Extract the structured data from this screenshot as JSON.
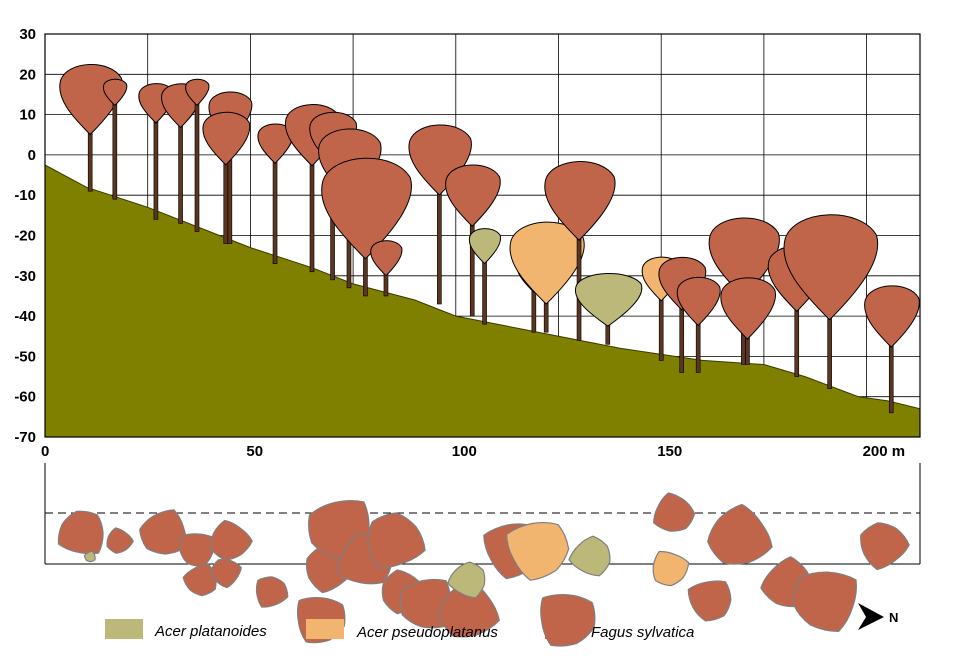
{
  "chart_data": {
    "type": "profile",
    "title": "",
    "xlabel": "",
    "ylabel": "",
    "x_unit": "m",
    "xlim": [
      0,
      213
    ],
    "ylim": [
      -70,
      30
    ],
    "x_ticks": [
      0,
      50,
      100,
      150,
      200
    ],
    "y_ticks": [
      30,
      20,
      10,
      0,
      -10,
      -20,
      -30,
      -40,
      -50,
      -60,
      -70
    ],
    "x_tick_labels": [
      "0",
      "50",
      "100",
      "150",
      "200 m"
    ],
    "grid": true,
    "species": [
      {
        "key": "ap",
        "name": "Acer platanoides",
        "color": "#bcb87a"
      },
      {
        "key": "pp",
        "name": "Acer pseudoplatanus",
        "color": "#f2b570"
      },
      {
        "key": "fs",
        "name": "Fagus sylvatica",
        "color": "#c0654a"
      }
    ],
    "ground_color": "#7f7f00",
    "ground_profile": [
      [
        0,
        -2.5
      ],
      [
        10,
        -8
      ],
      [
        25,
        -13
      ],
      [
        40,
        -19
      ],
      [
        50,
        -23
      ],
      [
        65,
        -28
      ],
      [
        75,
        -32
      ],
      [
        90,
        -36
      ],
      [
        100,
        -40
      ],
      [
        120,
        -44
      ],
      [
        130,
        -46
      ],
      [
        140,
        -48
      ],
      [
        160,
        -51
      ],
      [
        175,
        -52
      ],
      [
        185,
        -55
      ],
      [
        198,
        -60
      ],
      [
        205,
        -61
      ],
      [
        213,
        -63
      ]
    ],
    "trees_profile": [
      {
        "sp": "fs",
        "x": 11,
        "base": -9,
        "top": 23,
        "w": 16
      },
      {
        "sp": "fs",
        "x": 17,
        "base": -11,
        "top": 19,
        "w": 6
      },
      {
        "sp": "fs",
        "x": 27,
        "base": -16,
        "top": 18,
        "w": 9
      },
      {
        "sp": "fs",
        "x": 33,
        "base": -17,
        "top": 18,
        "w": 10
      },
      {
        "sp": "fs",
        "x": 37,
        "base": -19,
        "top": 19,
        "w": 6
      },
      {
        "sp": "fs",
        "x": 45,
        "base": -22,
        "top": 16,
        "w": 11
      },
      {
        "sp": "fs",
        "x": 44,
        "base": -22,
        "top": 11,
        "w": 12
      },
      {
        "sp": "fs",
        "x": 56,
        "base": -27,
        "top": 8,
        "w": 9
      },
      {
        "sp": "fs",
        "x": 65,
        "base": -29,
        "top": 13,
        "w": 14
      },
      {
        "sp": "fs",
        "x": 70,
        "base": -31,
        "top": 11,
        "w": 12
      },
      {
        "sp": "fs",
        "x": 74,
        "base": -33,
        "top": 7,
        "w": 16
      },
      {
        "sp": "fs",
        "x": 78,
        "base": -35,
        "top": 0,
        "w": 23
      },
      {
        "sp": "fs",
        "x": 83,
        "base": -35,
        "top": -21,
        "w": 8
      },
      {
        "sp": "fs",
        "x": 96,
        "base": -37,
        "top": 8,
        "w": 16
      },
      {
        "sp": "fs",
        "x": 104,
        "base": -40,
        "top": -2,
        "w": 14
      },
      {
        "sp": "ap",
        "x": 107,
        "base": -42,
        "top": -18,
        "w": 8
      },
      {
        "sp": "fs",
        "x": 119,
        "base": -44,
        "top": -24,
        "w": 9
      },
      {
        "sp": "pp",
        "x": 122,
        "base": -44,
        "top": -16,
        "w": 19
      },
      {
        "sp": "fs",
        "x": 130,
        "base": -46,
        "top": -1,
        "w": 18
      },
      {
        "sp": "ap",
        "x": 137,
        "base": -47,
        "top": -29,
        "w": 17
      },
      {
        "sp": "pp",
        "x": 150,
        "base": -51,
        "top": -25,
        "w": 10
      },
      {
        "sp": "fs",
        "x": 155,
        "base": -54,
        "top": -25,
        "w": 12
      },
      {
        "sp": "fs",
        "x": 159,
        "base": -54,
        "top": -30,
        "w": 11
      },
      {
        "sp": "fs",
        "x": 170,
        "base": -52,
        "top": -15,
        "w": 18
      },
      {
        "sp": "fs",
        "x": 171,
        "base": -52,
        "top": -30,
        "w": 14
      },
      {
        "sp": "fs",
        "x": 183,
        "base": -55,
        "top": -22,
        "w": 15
      },
      {
        "sp": "fs",
        "x": 191,
        "base": -58,
        "top": -14,
        "w": 24
      },
      {
        "sp": "fs",
        "x": 206,
        "base": -64,
        "top": -32,
        "w": 14
      }
    ],
    "crowns_plan": [
      {
        "sp": "fs",
        "x": 9,
        "y": 18,
        "r": 6.5
      },
      {
        "sp": "ap",
        "x": 11,
        "y": 24,
        "r": 1.5
      },
      {
        "sp": "fs",
        "x": 18,
        "y": 20,
        "r": 3.5
      },
      {
        "sp": "fs",
        "x": 29,
        "y": 18,
        "r": 6.5
      },
      {
        "sp": "fs",
        "x": 37,
        "y": 22,
        "r": 5
      },
      {
        "sp": "fs",
        "x": 38,
        "y": 30,
        "r": 4.5
      },
      {
        "sp": "fs",
        "x": 44,
        "y": 28,
        "r": 4
      },
      {
        "sp": "fs",
        "x": 45,
        "y": 20,
        "r": 5.5
      },
      {
        "sp": "fs",
        "x": 55,
        "y": 33,
        "r": 4.5
      },
      {
        "sp": "fs",
        "x": 67,
        "y": 40,
        "r": 7
      },
      {
        "sp": "fs",
        "x": 69,
        "y": 27,
        "r": 6.5
      },
      {
        "sp": "fs",
        "x": 72,
        "y": 17,
        "r": 9
      },
      {
        "sp": "fs",
        "x": 78,
        "y": 25,
        "r": 7.5
      },
      {
        "sp": "fs",
        "x": 85,
        "y": 20,
        "r": 8
      },
      {
        "sp": "fs",
        "x": 87,
        "y": 33,
        "r": 6
      },
      {
        "sp": "fs",
        "x": 93,
        "y": 36,
        "r": 7.5
      },
      {
        "sp": "fs",
        "x": 103,
        "y": 38,
        "r": 8
      },
      {
        "sp": "ap",
        "x": 103,
        "y": 30,
        "r": 5
      },
      {
        "sp": "fs",
        "x": 114,
        "y": 22,
        "r": 8
      },
      {
        "sp": "pp",
        "x": 120,
        "y": 22,
        "r": 8.5
      },
      {
        "sp": "fs",
        "x": 127,
        "y": 40,
        "r": 8
      },
      {
        "sp": "ap",
        "x": 133,
        "y": 24,
        "r": 5.5
      },
      {
        "sp": "pp",
        "x": 152,
        "y": 27,
        "r": 5
      },
      {
        "sp": "fs",
        "x": 153,
        "y": 13,
        "r": 5.5
      },
      {
        "sp": "fs",
        "x": 162,
        "y": 35,
        "r": 6
      },
      {
        "sp": "fs",
        "x": 169,
        "y": 19,
        "r": 8.5
      },
      {
        "sp": "fs",
        "x": 181,
        "y": 31,
        "r": 7
      },
      {
        "sp": "fs",
        "x": 190,
        "y": 35,
        "r": 9
      },
      {
        "sp": "fs",
        "x": 204,
        "y": 21,
        "r": 6.5
      }
    ],
    "legend_position": "bottom",
    "north_arrow_label": "N"
  }
}
